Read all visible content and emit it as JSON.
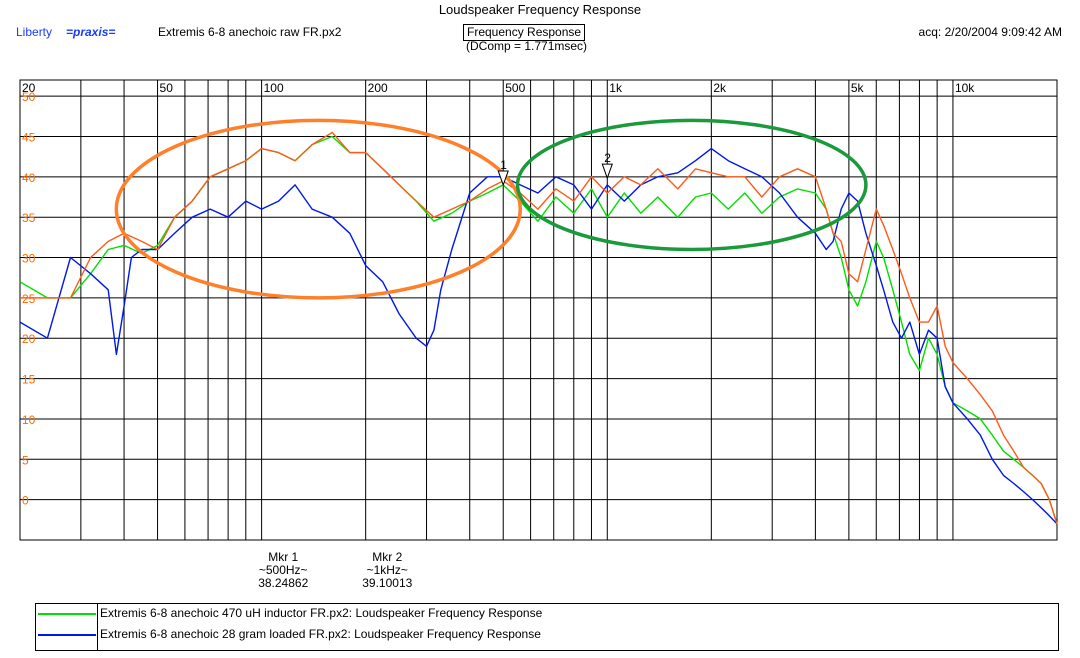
{
  "header": {
    "title": "Loudspeaker Frequency Response",
    "brand": "Liberty",
    "praxis": "=praxis=",
    "file": "Extremis 6-8 anechoic raw FR.px2",
    "view": "Frequency Response",
    "acq": "acq: 2/20/2004 9:09:42 AM",
    "dcomp": "(DComp = 1.771msec)"
  },
  "chart_data": {
    "type": "line",
    "title": "Loudspeaker Frequency Response",
    "x_scale": "log",
    "xlim": [
      20,
      20000
    ],
    "ylim": [
      -5,
      52
    ],
    "grid": true,
    "x_ticks": [
      {
        "v": 20,
        "label": "20"
      },
      {
        "v": 50,
        "label": "50"
      },
      {
        "v": 100,
        "label": "100"
      },
      {
        "v": 200,
        "label": "200"
      },
      {
        "v": 500,
        "label": "500"
      },
      {
        "v": 1000,
        "label": "1k"
      },
      {
        "v": 2000,
        "label": "2k"
      },
      {
        "v": 5000,
        "label": "5k"
      },
      {
        "v": 10000,
        "label": "10k"
      }
    ],
    "y_ticks": [
      0,
      5,
      10,
      15,
      20,
      25,
      30,
      35,
      40,
      45,
      50
    ],
    "series": [
      {
        "name": "Extremis 6-8 anechoic 470 uH inductor FR.px2:  Loudspeaker Frequency Response",
        "color": "#00e000",
        "x": [
          20,
          24,
          28,
          32,
          36,
          40,
          45,
          50,
          56,
          63,
          71,
          80,
          90,
          100,
          112,
          125,
          140,
          160,
          180,
          200,
          224,
          250,
          280,
          315,
          355,
          400,
          450,
          500,
          560,
          630,
          710,
          800,
          900,
          1000,
          1120,
          1250,
          1400,
          1600,
          1800,
          2000,
          2240,
          2500,
          2800,
          3150,
          3550,
          4000,
          4300,
          4500,
          4750,
          5000,
          5300,
          5600,
          6000,
          6300,
          6700,
          7100,
          7500,
          8000,
          8500,
          9000,
          9500,
          10000,
          11000,
          12000,
          13000,
          14000,
          15000,
          16000,
          17000,
          18000,
          19000,
          20000
        ],
        "y": [
          27,
          25,
          25,
          28,
          31,
          31.5,
          30.5,
          31.5,
          35,
          37,
          40,
          41,
          42,
          43.5,
          43,
          42,
          44,
          45,
          43,
          43,
          41,
          39,
          37,
          34.5,
          35.5,
          37,
          38,
          39,
          37,
          34.5,
          37.5,
          35.5,
          38.5,
          35,
          38,
          35.5,
          37.5,
          35,
          37.5,
          38,
          36,
          38,
          35.5,
          37.5,
          38.5,
          38,
          36,
          33,
          30,
          26,
          24,
          27,
          32,
          30,
          26,
          22,
          18,
          16,
          20,
          18,
          14,
          12,
          11,
          10,
          8,
          6,
          5,
          4,
          3,
          2,
          0,
          -3
        ]
      },
      {
        "name": "Extremis 6-8 anechoic 28 gram loaded FR.px2:  Loudspeaker Frequency Response",
        "color": "#0018e8",
        "x": [
          20,
          24,
          28,
          32,
          36,
          38,
          40,
          42,
          45,
          50,
          56,
          63,
          71,
          80,
          90,
          100,
          112,
          125,
          140,
          160,
          180,
          200,
          224,
          250,
          280,
          300,
          315,
          330,
          355,
          400,
          450,
          500,
          560,
          630,
          710,
          800,
          900,
          1000,
          1120,
          1250,
          1400,
          1600,
          1800,
          2000,
          2240,
          2500,
          2800,
          3150,
          3550,
          4000,
          4300,
          4500,
          4750,
          5000,
          5300,
          5600,
          6000,
          6300,
          6700,
          7100,
          7500,
          8000,
          8500,
          9000,
          9500,
          10000,
          11000,
          12000,
          13000,
          14000,
          15000,
          16000,
          17000,
          18000,
          19000,
          20000
        ],
        "y": [
          22,
          20,
          30,
          28,
          26,
          18,
          24,
          30,
          31,
          31,
          33,
          35,
          36,
          35,
          37,
          36,
          37,
          39,
          36,
          35,
          33,
          29,
          27,
          23,
          20,
          19,
          21,
          26,
          31,
          38,
          40,
          40,
          39,
          38,
          40,
          39,
          36,
          39,
          37,
          39,
          40,
          40.5,
          42,
          43.5,
          42,
          41,
          40,
          38,
          35,
          33,
          31,
          32,
          36,
          38,
          37,
          33,
          29,
          26,
          22,
          20,
          22,
          18,
          21,
          20,
          14,
          12,
          10,
          8,
          5,
          3,
          2,
          1,
          0,
          -1,
          -2,
          -3
        ]
      },
      {
        "name": "",
        "color": "#ff5a1a",
        "x": [
          20,
          24,
          28,
          32,
          36,
          40,
          45,
          50,
          56,
          63,
          71,
          80,
          90,
          100,
          112,
          125,
          140,
          160,
          180,
          200,
          224,
          250,
          280,
          315,
          355,
          400,
          450,
          500,
          560,
          630,
          710,
          800,
          900,
          1000,
          1120,
          1250,
          1400,
          1600,
          1800,
          2000,
          2240,
          2500,
          2800,
          3150,
          3550,
          4000,
          4300,
          4500,
          4750,
          5000,
          5300,
          5600,
          6000,
          6300,
          6700,
          7100,
          7500,
          8000,
          8500,
          9000,
          9500,
          10000,
          11000,
          12000,
          13000,
          14000,
          15000,
          16000,
          17000,
          18000,
          19000,
          20000
        ],
        "y": [
          25,
          25,
          25,
          30,
          32,
          33,
          32,
          31,
          35,
          37,
          40,
          41,
          42,
          43.5,
          43,
          42,
          44,
          45.5,
          43,
          43,
          41,
          39,
          37,
          35,
          36,
          37,
          38.5,
          39.5,
          38,
          36,
          38.5,
          37,
          40,
          38,
          40,
          39,
          41,
          38.5,
          41,
          40.5,
          40,
          40,
          37.5,
          40,
          41,
          40,
          36,
          33,
          32,
          28,
          27,
          31,
          36,
          34,
          31,
          28,
          25,
          22,
          22,
          24,
          19,
          17,
          15,
          13,
          11,
          8,
          6,
          4,
          3,
          2,
          0,
          -3
        ]
      }
    ],
    "markers": [
      {
        "id": "1",
        "label": "Mkr 1",
        "freq": "~500Hz~",
        "value": "38.24862",
        "x": 500,
        "y": 38.25
      },
      {
        "id": "2",
        "label": "Mkr 2",
        "freq": "~1kHz~",
        "value": "39.10013",
        "x": 1000,
        "y": 39.1
      }
    ],
    "annotations": [
      {
        "shape": "ellipse",
        "color": "#ff7f2a",
        "x_range": [
          38,
          560
        ],
        "y_range": [
          25,
          47
        ]
      },
      {
        "shape": "ellipse",
        "color": "#1a9a3a",
        "x_range": [
          550,
          5600
        ],
        "y_range": [
          31,
          47
        ]
      }
    ]
  },
  "legend": {
    "entries": [
      {
        "text": "Extremis 6-8 anechoic 470 uH inductor FR.px2:  Loudspeaker Frequency Response",
        "color": "#00e000"
      },
      {
        "text": "Extremis 6-8 anechoic 28 gram loaded FR.px2:  Loudspeaker Frequency Response",
        "color": "#0018e8"
      }
    ]
  }
}
